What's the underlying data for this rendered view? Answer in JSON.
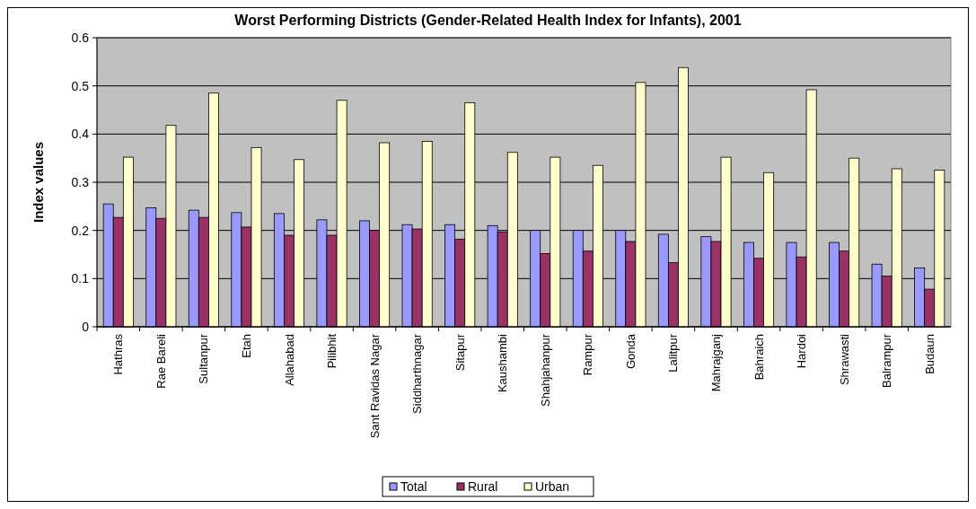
{
  "chart_data": {
    "type": "bar",
    "title": "Worst Performing Districts (Gender-Related Health Index for Infants), 2001",
    "ylabel": "Index values",
    "categories": [
      "Hathras",
      "Rae Bareli",
      "Sultanpur",
      "Etah",
      "Allahabad",
      "Pilibhit",
      "Sant Ravidas Nagar",
      "Siddharthnagar",
      "Sitapur",
      "Kaushambi",
      "Shahjahanpur",
      "Rampur",
      "Gonda",
      "Lalitpur",
      "Mahrajganj",
      "Bahraich",
      "Hardoi",
      "Shrawasti",
      "Balrampur",
      "Budaun"
    ],
    "series": [
      {
        "name": "Total",
        "color": "#9999ff",
        "values": [
          0.255,
          0.247,
          0.242,
          0.237,
          0.235,
          0.222,
          0.22,
          0.212,
          0.212,
          0.21,
          0.2,
          0.2,
          0.2,
          0.192,
          0.187,
          0.175,
          0.175,
          0.175,
          0.13,
          0.122
        ]
      },
      {
        "name": "Rural",
        "color": "#993366",
        "values": [
          0.227,
          0.225,
          0.227,
          0.207,
          0.19,
          0.19,
          0.2,
          0.203,
          0.182,
          0.197,
          0.152,
          0.157,
          0.177,
          0.133,
          0.177,
          0.142,
          0.145,
          0.157,
          0.105,
          0.078
        ]
      },
      {
        "name": "Urban",
        "color": "#ffffcc",
        "values": [
          0.352,
          0.418,
          0.485,
          0.372,
          0.347,
          0.47,
          0.382,
          0.385,
          0.465,
          0.362,
          0.352,
          0.335,
          0.507,
          0.538,
          0.352,
          0.32,
          0.492,
          0.35,
          0.328,
          0.325
        ]
      }
    ],
    "ylim": [
      0,
      0.6
    ],
    "yticks": [
      0,
      0.1,
      0.2,
      0.3,
      0.4,
      0.5,
      0.6
    ],
    "grid": "y",
    "legend": "bottom"
  }
}
